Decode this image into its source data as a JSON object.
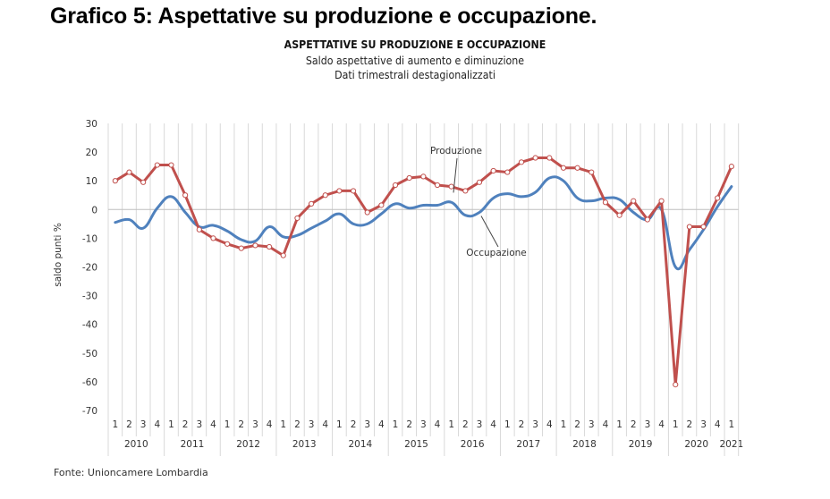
{
  "document": {
    "heading": "Grafico 5: Aspettative su produzione e occupazione.",
    "source": "Fonte: Unioncamere  Lombardia"
  },
  "chart_data": {
    "type": "line",
    "title": "ASPETTATIVE SU PRODUZIONE E OCCUPAZIONE",
    "subtitle_1": "Saldo aspettative di aumento e diminuzione",
    "subtitle_2": "Dati trimestrali destagionalizzati",
    "ylabel": "saldo punti %",
    "xlabel": "",
    "ylim": [
      -70,
      30
    ],
    "yticks": [
      30,
      20,
      10,
      0,
      -10,
      -20,
      -30,
      -40,
      -50,
      -60,
      -70
    ],
    "grid": "vertical",
    "years": [
      "2010",
      "2011",
      "2012",
      "2013",
      "2014",
      "2015",
      "2016",
      "2017",
      "2018",
      "2019",
      "2020",
      "2021"
    ],
    "quarters_per_year": [
      4,
      4,
      4,
      4,
      4,
      4,
      4,
      4,
      4,
      4,
      4,
      1
    ],
    "quarter_labels": [
      "1",
      "2",
      "3",
      "4"
    ],
    "series": [
      {
        "name": "Produzione",
        "color": "#c0504d",
        "markers": true,
        "smooth": false,
        "annotation": "Produzione",
        "values": [
          10,
          13,
          9.5,
          15.5,
          15.5,
          5,
          -7,
          -10,
          -12,
          -13.5,
          -12.5,
          -13,
          -16,
          -3,
          2,
          5,
          6.5,
          6.5,
          -1,
          1.5,
          8.5,
          11,
          11.5,
          8.5,
          8,
          6.5,
          9.5,
          13.5,
          13,
          16.5,
          18,
          18,
          14.5,
          14.5,
          13,
          2.5,
          -2,
          3,
          -3.5,
          3,
          -61,
          -6,
          -6,
          4,
          15
        ]
      },
      {
        "name": "Occupazione",
        "color": "#4f81bd",
        "markers": false,
        "smooth": true,
        "annotation": "Occupazione",
        "values": [
          -4.5,
          -3.5,
          -6.5,
          0.5,
          4.5,
          -1,
          -6,
          -5.5,
          -7.5,
          -10.5,
          -11,
          -6,
          -9.5,
          -9,
          -6.5,
          -4,
          -1.5,
          -5,
          -5,
          -1.5,
          2,
          0.5,
          1.5,
          1.5,
          2.5,
          -2,
          -1,
          4,
          5.5,
          4.5,
          6,
          11,
          10,
          4,
          3,
          4,
          3.5,
          -1,
          -3.5,
          0,
          -20,
          -14,
          -7,
          1,
          8
        ]
      }
    ]
  }
}
